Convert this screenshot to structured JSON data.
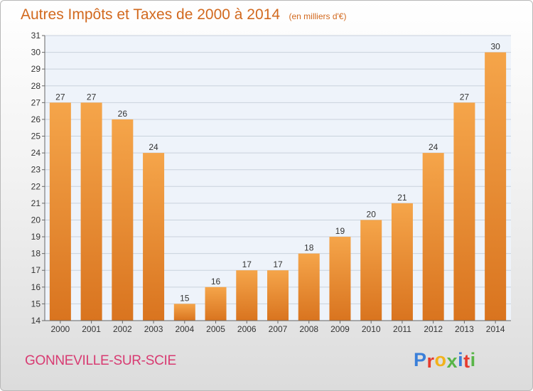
{
  "title": "Autres Impôts et Taxes de 2000 à 2014",
  "subtitle": "(en milliers d'€)",
  "footer": {
    "city": "GONNEVILLE-SUR-SCIE",
    "brand": {
      "letters": [
        {
          "ch": "P",
          "color": "#3a7fd9"
        },
        {
          "ch": "r",
          "color": "#e63b2e"
        },
        {
          "ch": "o",
          "color": "#f2b21b"
        },
        {
          "ch": "x",
          "color": "#59b548"
        },
        {
          "ch": "i",
          "color": "#3a7fd9"
        },
        {
          "ch": "t",
          "color": "#e63b2e"
        },
        {
          "ch": "i",
          "color": "#59b548"
        }
      ]
    }
  },
  "colors": {
    "title": "#d2691e",
    "city": "#d83b72",
    "bar_light": "#f5a54a",
    "bar_dark": "#d9741f"
  },
  "chart_data": {
    "type": "bar",
    "title": "Autres Impôts et Taxes de 2000 à 2014",
    "subtitle": "(en milliers d'€)",
    "categories": [
      "2000",
      "2001",
      "2002",
      "2003",
      "2004",
      "2005",
      "2006",
      "2007",
      "2008",
      "2009",
      "2010",
      "2011",
      "2012",
      "2013",
      "2014"
    ],
    "values": [
      27,
      27,
      26,
      24,
      15,
      16,
      17,
      17,
      18,
      19,
      20,
      21,
      24,
      27,
      30
    ],
    "ylim": [
      14,
      31
    ],
    "yticks": [
      14,
      15,
      16,
      17,
      18,
      19,
      20,
      21,
      22,
      23,
      24,
      25,
      26,
      27,
      28,
      29,
      30,
      31
    ],
    "grid": true,
    "data_labels": true
  }
}
